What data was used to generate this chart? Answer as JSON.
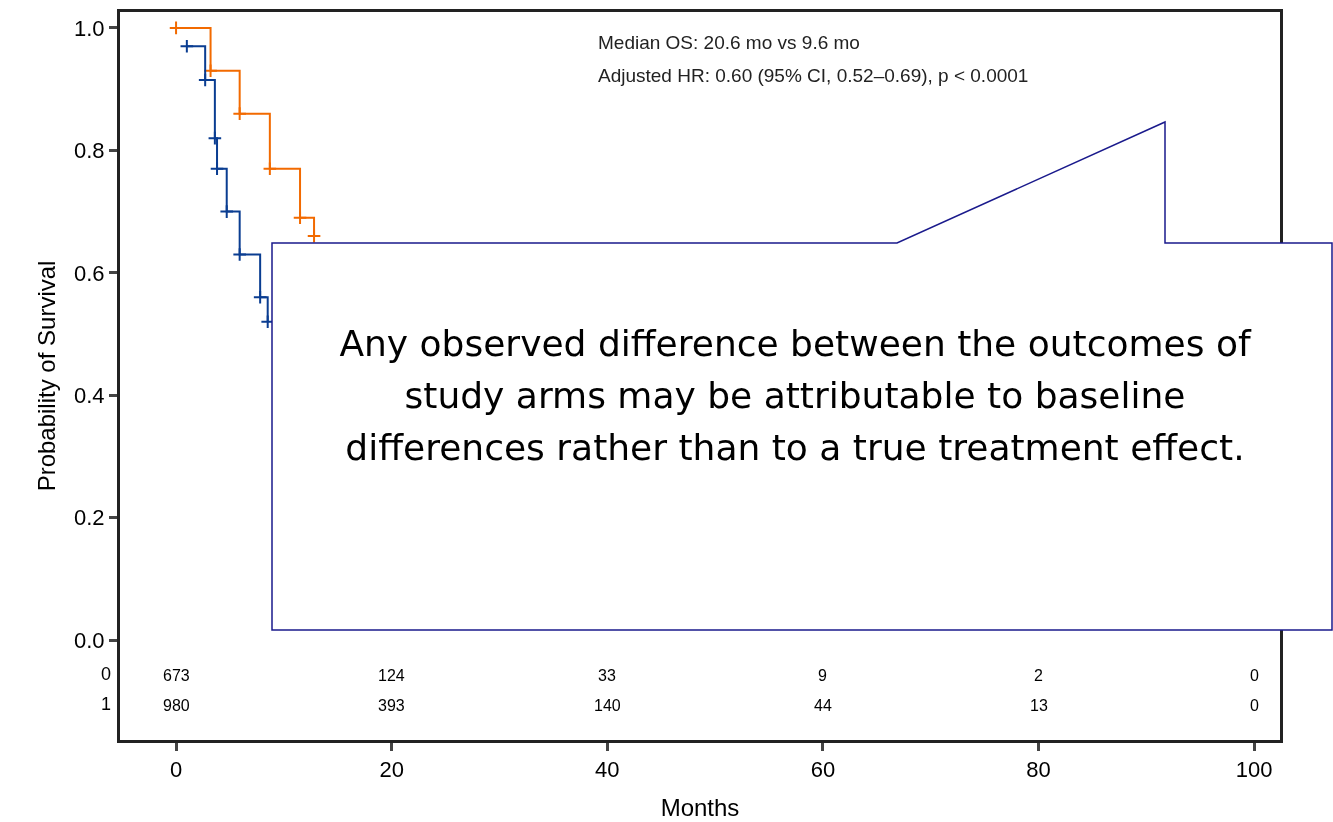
{
  "chart_data": {
    "type": "step",
    "xlabel": "Months",
    "ylabel": "Probability of Survival",
    "x": [
      0,
      3.2,
      5.9,
      8.7,
      11.5,
      12.8
    ],
    "series": [
      {
        "color": "#f26a00",
        "values": [
          1.0,
          0.93,
          0.86,
          0.77,
          0.69,
          0.66
        ]
      },
      {
        "color": "#0a3d91",
        "x": [
          1.0,
          2.7,
          3.6,
          3.8,
          4.7,
          5.9,
          7.8,
          8.5
        ],
        "values": [
          0.97,
          0.915,
          0.82,
          0.77,
          0.7,
          0.63,
          0.56,
          0.52
        ]
      }
    ],
    "xlim": [
      -5.2,
      102.4
    ],
    "xticks": [
      0,
      20,
      40,
      60,
      80,
      100
    ],
    "ylim": [
      -0.163,
      1.026
    ],
    "yticks": [
      {
        "value": 0,
        "label": "0.0"
      },
      {
        "value": 0.2,
        "label": "0.2"
      },
      {
        "value": 0.4,
        "label": "0.4"
      },
      {
        "value": 0.6,
        "label": "0.6"
      },
      {
        "value": 0.8,
        "label": "0.8"
      },
      {
        "value": 1,
        "label": "1.0"
      }
    ],
    "grid": false,
    "marker": "cross",
    "line_style": "solid",
    "annotations": [
      "Median OS: 20.6 mo vs 9.6 mo",
      "Adjusted HR: 0.60 (95% CI, 0.52–0.69), p < 0.0001",
      "Any observed difference between the outcomes of study arms may be attributable to baseline differences rather than to a true treatment effect.",
      "0",
      "1",
      "673",
      "124",
      "33",
      "9",
      "2",
      "0",
      "980",
      "393",
      "140",
      "44",
      "13",
      "0"
    ]
  }
}
